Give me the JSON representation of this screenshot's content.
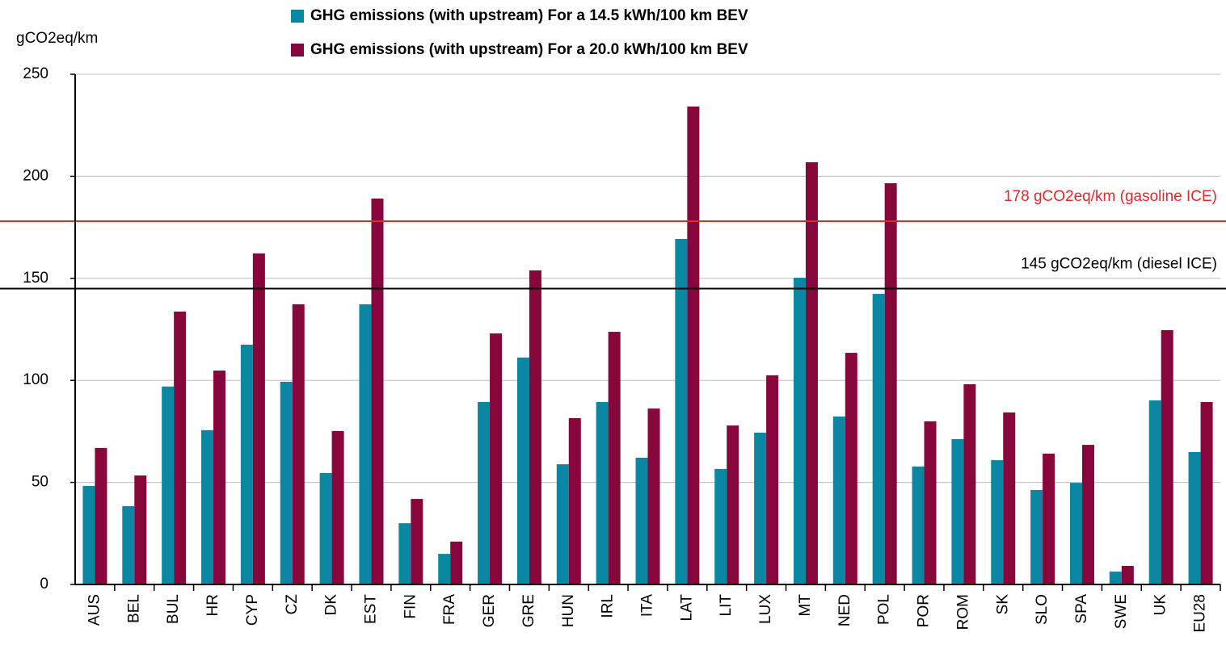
{
  "chart_data": {
    "type": "bar",
    "y_axis_label": "gCO2eq/km",
    "categories": [
      "AUS",
      "BEL",
      "BUL",
      "HR",
      "CYP",
      "CZ",
      "DK",
      "EST",
      "FIN",
      "FRA",
      "GER",
      "GRE",
      "HUN",
      "IRL",
      "ITA",
      "LAT",
      "LIT",
      "LUX",
      "MT",
      "NED",
      "POL",
      "POR",
      "ROM",
      "SK",
      "SLO",
      "SPA",
      "SWE",
      "UK",
      "EU28"
    ],
    "series": [
      {
        "name": "GHG emissions (with upstream) For a 14.5 kWh/100 km BEV",
        "color": "#0b87a4",
        "values": [
          48.3,
          38.4,
          97,
          75.6,
          117.5,
          99.3,
          54.6,
          137.3,
          30,
          15,
          89.4,
          111.2,
          58.9,
          89.4,
          62.1,
          169.3,
          56.6,
          74.4,
          150.3,
          82.3,
          142.4,
          57.8,
          71.2,
          60.9,
          46.3,
          49.8,
          6.3,
          90.2,
          64.9
        ]
      },
      {
        "name": "GHG emissions (with upstream) For a 20.0 kWh/100 km BEV",
        "color": "#87063c",
        "values": [
          66.9,
          53.4,
          133.7,
          104.8,
          162.2,
          137.3,
          75.2,
          189.1,
          41.9,
          21,
          123,
          153.9,
          81.5,
          123.8,
          86.2,
          234.2,
          77.9,
          102.5,
          206.9,
          113.5,
          196.6,
          79.9,
          98.1,
          84.3,
          64.1,
          68.4,
          9.1,
          124.6,
          89.4
        ]
      }
    ],
    "reference_lines": [
      {
        "value": 178,
        "label": "178 gCO2eq/km (gasoline ICE)",
        "color": "#e3272b"
      },
      {
        "value": 145,
        "label": "145 gCO2eq/km (diesel ICE)",
        "color": "#000000"
      }
    ],
    "ylim": [
      0,
      250
    ],
    "yticks": [
      0,
      50,
      100,
      150,
      200,
      250
    ],
    "grid": true
  }
}
